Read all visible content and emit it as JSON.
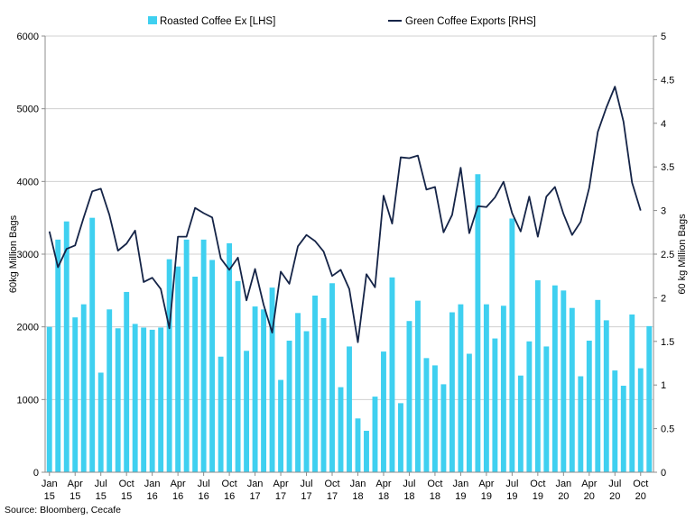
{
  "chart_data": {
    "type": "bar",
    "legend": [
      "Roasted Coffee Ex [LHS]",
      "Green Coffee Exports [RHS]"
    ],
    "legend_position": "top",
    "y_left": {
      "label": "60kg Million Bags",
      "min": 0,
      "max": 6000,
      "ticks": [
        "0",
        "1000",
        "2000",
        "3000",
        "4000",
        "5000",
        "6000"
      ]
    },
    "y_right": {
      "label": "60 kg Million Bags",
      "min": 0,
      "max": 5,
      "ticks": [
        "0",
        "0.5",
        "1",
        "1.5",
        "2",
        "2.5",
        "3",
        "3.5",
        "4",
        "4.5",
        "5"
      ]
    },
    "x_ticks": [
      {
        "m": "Jan",
        "y": "15",
        "i": 0
      },
      {
        "m": "Apr",
        "y": "15",
        "i": 3
      },
      {
        "m": "Jul",
        "y": "15",
        "i": 6
      },
      {
        "m": "Oct",
        "y": "15",
        "i": 9
      },
      {
        "m": "Jan",
        "y": "16",
        "i": 12
      },
      {
        "m": "Apr",
        "y": "16",
        "i": 15
      },
      {
        "m": "Jul",
        "y": "16",
        "i": 18
      },
      {
        "m": "Oct",
        "y": "16",
        "i": 21
      },
      {
        "m": "Jan",
        "y": "17",
        "i": 24
      },
      {
        "m": "Apr",
        "y": "17",
        "i": 27
      },
      {
        "m": "Jul",
        "y": "17",
        "i": 30
      },
      {
        "m": "Oct",
        "y": "17",
        "i": 33
      },
      {
        "m": "Jan",
        "y": "18",
        "i": 36
      },
      {
        "m": "Apr",
        "y": "18",
        "i": 39
      },
      {
        "m": "Jul",
        "y": "18",
        "i": 42
      },
      {
        "m": "Oct",
        "y": "18",
        "i": 45
      },
      {
        "m": "Jan",
        "y": "19",
        "i": 48
      },
      {
        "m": "Apr",
        "y": "19",
        "i": 51
      },
      {
        "m": "Jul",
        "y": "19",
        "i": 54
      },
      {
        "m": "Oct",
        "y": "19",
        "i": 57
      },
      {
        "m": "Jan",
        "y": "20",
        "i": 60
      },
      {
        "m": "Apr",
        "y": "20",
        "i": 63
      },
      {
        "m": "Jul",
        "y": "20",
        "i": 66
      },
      {
        "m": "Oct",
        "y": "20",
        "i": 69
      }
    ],
    "series": [
      {
        "name": "Roasted Coffee Ex [LHS]",
        "type": "bar",
        "axis": "left",
        "color": "#3fd0f0",
        "values": [
          2000,
          3200,
          3450,
          2130,
          2310,
          3500,
          1370,
          2240,
          1980,
          2480,
          2040,
          1990,
          1960,
          1990,
          2930,
          2830,
          3200,
          2690,
          3200,
          2920,
          1590,
          3150,
          2630,
          1670,
          2280,
          2240,
          2540,
          1270,
          1810,
          2190,
          1940,
          2430,
          2120,
          2600,
          1170,
          1730,
          740,
          570,
          1040,
          1660,
          2680,
          950,
          2080,
          2360,
          1570,
          1470,
          1210,
          2200,
          2310,
          1630,
          4100,
          2310,
          1840,
          2290,
          3490,
          1330,
          1800,
          2640,
          1730,
          2570,
          2500,
          2260,
          1320,
          1810,
          2370,
          2090,
          1400,
          1190,
          2170,
          1430,
          2010
        ]
      },
      {
        "name": "Green Coffee Exports [RHS]",
        "type": "line",
        "axis": "right",
        "color": "#152447",
        "values": [
          2.76,
          2.35,
          2.56,
          2.6,
          2.92,
          3.22,
          3.25,
          2.95,
          2.54,
          2.62,
          2.77,
          2.18,
          2.23,
          2.1,
          1.65,
          2.7,
          2.7,
          3.03,
          2.97,
          2.92,
          2.45,
          2.32,
          2.46,
          1.97,
          2.33,
          1.92,
          1.6,
          2.3,
          2.16,
          2.59,
          2.72,
          2.65,
          2.53,
          2.25,
          2.32,
          2.1,
          1.49,
          2.27,
          2.12,
          3.17,
          2.85,
          3.61,
          3.6,
          3.63,
          3.24,
          3.27,
          2.75,
          2.95,
          3.49,
          2.74,
          3.05,
          3.04,
          3.15,
          3.33,
          2.97,
          2.76,
          3.16,
          2.7,
          3.16,
          3.27,
          2.96,
          2.72,
          2.87,
          3.26,
          3.9,
          4.18,
          4.42,
          4.02,
          3.32,
          3.0
        ]
      }
    ]
  },
  "source": "Source: Bloomberg, Cecafe"
}
